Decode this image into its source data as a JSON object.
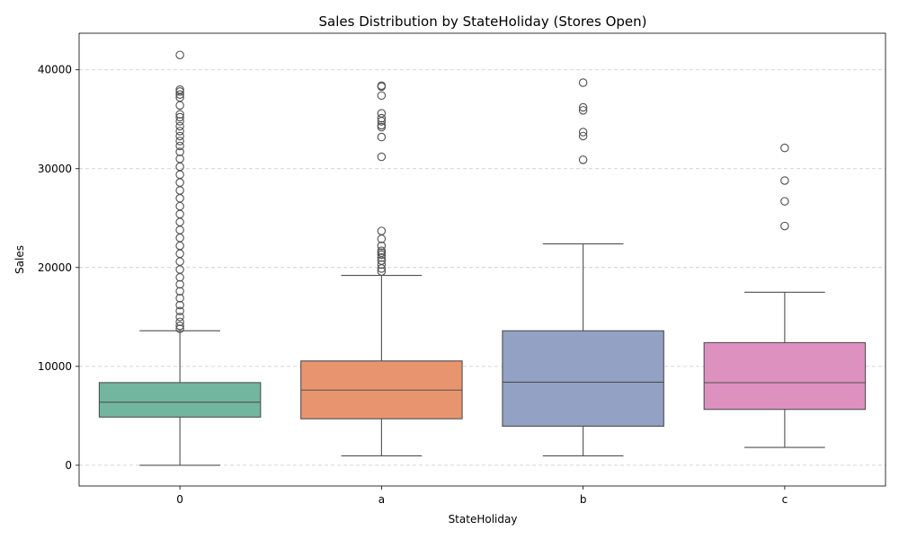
{
  "chart_data": {
    "type": "box",
    "title": "Sales Distribution by StateHoliday (Stores Open)",
    "xlabel": "StateHoliday",
    "ylabel": "Sales",
    "categories": [
      "0",
      "a",
      "b",
      "c"
    ],
    "ylim": [
      -2100,
      43700
    ],
    "yticks": [
      0,
      10000,
      20000,
      30000,
      40000
    ],
    "ytick_labels": [
      "0",
      "10000",
      "20000",
      "30000",
      "40000"
    ],
    "grid": "y-dashed",
    "boxes": [
      {
        "category": "0",
        "color": "#72b69f",
        "whisker_low": 0,
        "q1": 4870,
        "median": 6380,
        "q3": 8360,
        "whisker_high": 13600,
        "outliers": [
          13800,
          14100,
          14500,
          15000,
          15600,
          16200,
          16900,
          17600,
          18300,
          19000,
          19800,
          20600,
          21400,
          22200,
          23000,
          23800,
          24600,
          25400,
          26200,
          27000,
          27800,
          28600,
          29400,
          30200,
          31000,
          31700,
          32300,
          32800,
          33300,
          33800,
          34300,
          34800,
          35200,
          35500,
          36400,
          37200,
          37500,
          37800,
          38000,
          41500
        ]
      },
      {
        "category": "a",
        "color": "#e8956f",
        "whisker_low": 950,
        "q1": 4700,
        "median": 7600,
        "q3": 10550,
        "whisker_high": 19200,
        "outliers": [
          19600,
          19900,
          20300,
          20700,
          21000,
          21300,
          21500,
          21700,
          22200,
          22900,
          23700,
          31200,
          33200,
          34200,
          34400,
          34800,
          35100,
          35600,
          37400,
          38300,
          38400
        ]
      },
      {
        "category": "b",
        "color": "#93a1c4",
        "whisker_low": 950,
        "q1": 3950,
        "median": 8400,
        "q3": 13600,
        "whisker_high": 22400,
        "outliers": [
          30900,
          33300,
          33700,
          35900,
          36200,
          38700
        ]
      },
      {
        "category": "c",
        "color": "#dd91bf",
        "whisker_low": 1800,
        "q1": 5650,
        "median": 8350,
        "q3": 12400,
        "whisker_high": 17500,
        "outliers": [
          24200,
          26700,
          28800,
          32100
        ]
      }
    ]
  }
}
